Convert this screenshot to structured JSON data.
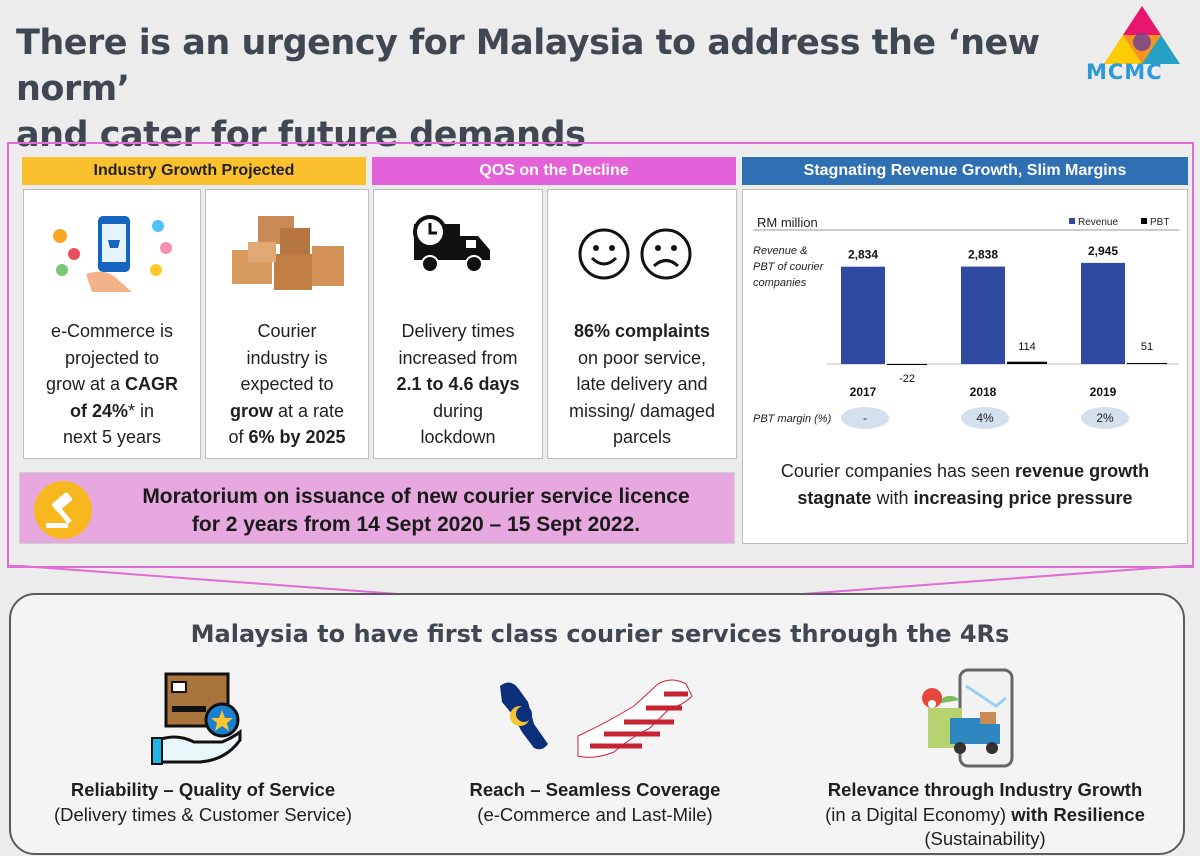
{
  "header": {
    "title_line1": "There is an urgency for Malaysia to address the ‘new norm’",
    "title_line2": "and cater for future demands",
    "logo_text": "MCMC"
  },
  "sections": {
    "growth_header": "Industry Growth Projected",
    "qos_header": "QOS on the Decline",
    "revenue_header": "Stagnating Revenue Growth, Slim Margins"
  },
  "cards": {
    "ecommerce": {
      "l1": "e-Commerce is",
      "l2": "projected to",
      "l3a": "grow at a ",
      "l3b": "CAGR",
      "l4a": "of 24%",
      "l4b": "*  in",
      "l5": "next 5 years"
    },
    "courier": {
      "l1": "Courier",
      "l2": "industry is",
      "l3": "expected to",
      "l4a": "grow",
      "l4b": " at a rate",
      "l5a": "of ",
      "l5b": "6% by 2025"
    },
    "delivery": {
      "l1": "Delivery times",
      "l2": "increased from",
      "l3": "2.1 to 4.6 days",
      "l4": "during",
      "l5": "lockdown"
    },
    "complaints": {
      "l1": "86% complaints",
      "l2": "on poor service,",
      "l3": "late delivery and",
      "l4": "missing/ damaged",
      "l5": "parcels"
    }
  },
  "moratorium": {
    "line1": "Moratorium on issuance of new courier service licence",
    "line2": "for 2 years from 14 Sept 2020 – 15 Sept 2022."
  },
  "revenue_footer": {
    "p1": "Courier companies has seen ",
    "b1": "revenue growth",
    "b2": "stagnate",
    "p2": " with ",
    "b3": "increasing price pressure"
  },
  "chart_data": {
    "type": "bar",
    "unit_label": "RM million",
    "side_label": "Revenue & PBT of courier companies",
    "categories": [
      "2017",
      "2018",
      "2019"
    ],
    "series": [
      {
        "name": "Revenue",
        "values": [
          2834,
          2838,
          2945
        ],
        "color": "#2f4aa0"
      },
      {
        "name": "PBT",
        "values": [
          -22,
          114,
          51
        ],
        "color": "#000000"
      }
    ],
    "value_labels": {
      "Revenue": [
        "2,834",
        "2,838",
        "2,945"
      ],
      "PBT": [
        "-22",
        "114",
        "51"
      ]
    },
    "pbt_margin_label": "PBT margin (%)",
    "pbt_margin": [
      "-",
      "4%",
      "2%"
    ],
    "legend_position": "top-right",
    "grid": false
  },
  "bottom": {
    "title": "Malaysia to have first class courier services through the 4Rs",
    "r1_title": "Reliability – Quality of Service",
    "r1_sub": "(Delivery times & Customer Service)",
    "r2_title": "Reach – Seamless Coverage",
    "r2_sub": "(e-Commerce and Last-Mile)",
    "r3_line1": "Relevance through Industry Growth",
    "r3_line2a": "(in a Digital Economy) ",
    "r3_line2b": "with Resilience",
    "r3_line3": "(Sustainability)"
  }
}
